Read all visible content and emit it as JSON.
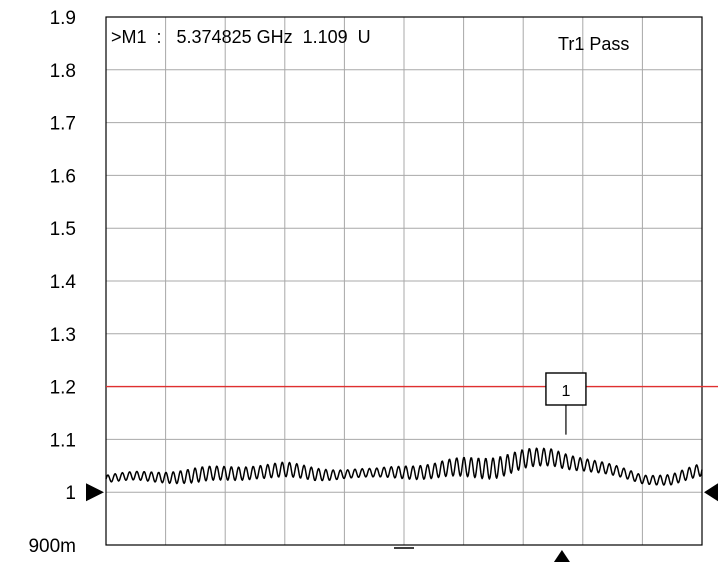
{
  "chart_data": {
    "type": "line",
    "ylim": [
      0.9,
      1.9
    ],
    "y_ticks": [
      {
        "value": 1.9,
        "label": "1.9"
      },
      {
        "value": 1.8,
        "label": "1.8"
      },
      {
        "value": 1.7,
        "label": "1.7"
      },
      {
        "value": 1.6,
        "label": "1.6"
      },
      {
        "value": 1.5,
        "label": "1.5"
      },
      {
        "value": 1.4,
        "label": "1.4"
      },
      {
        "value": 1.3,
        "label": "1.3"
      },
      {
        "value": 1.2,
        "label": "1.2"
      },
      {
        "value": 1.1,
        "label": "1.1"
      },
      {
        "value": 1.0,
        "label": "1"
      },
      {
        "value": 0.9,
        "label": "900m"
      }
    ],
    "x_divisions": 10,
    "grid": true,
    "limit_line": {
      "value": 1.2,
      "color": "#e03030"
    },
    "trace_color": "#000000",
    "marker_readout": ">M1  :   5.374825 GHz  1.109  U",
    "pass_status": "Tr1 Pass",
    "marker": {
      "label": "1",
      "x_fraction": 0.765,
      "value": 1.109
    },
    "reference_level": 1.0,
    "series": [
      {
        "envelope_x": [
          0,
          0.05,
          0.1,
          0.15,
          0.2,
          0.25,
          0.3,
          0.35,
          0.4,
          0.45,
          0.5,
          0.55,
          0.6,
          0.65,
          0.7,
          0.75,
          0.8,
          0.85,
          0.9,
          0.95,
          1.0
        ],
        "center": [
          1.025,
          1.03,
          1.03,
          1.03,
          1.035,
          1.04,
          1.04,
          1.035,
          1.035,
          1.035,
          1.04,
          1.04,
          1.045,
          1.05,
          1.06,
          1.065,
          1.055,
          1.04,
          1.025,
          1.025,
          1.04
        ],
        "ripple": [
          0.007,
          0.008,
          0.01,
          0.014,
          0.013,
          0.012,
          0.014,
          0.012,
          0.008,
          0.008,
          0.012,
          0.014,
          0.018,
          0.02,
          0.018,
          0.016,
          0.012,
          0.01,
          0.008,
          0.01,
          0.012
        ],
        "oscillations": 82
      }
    ]
  }
}
